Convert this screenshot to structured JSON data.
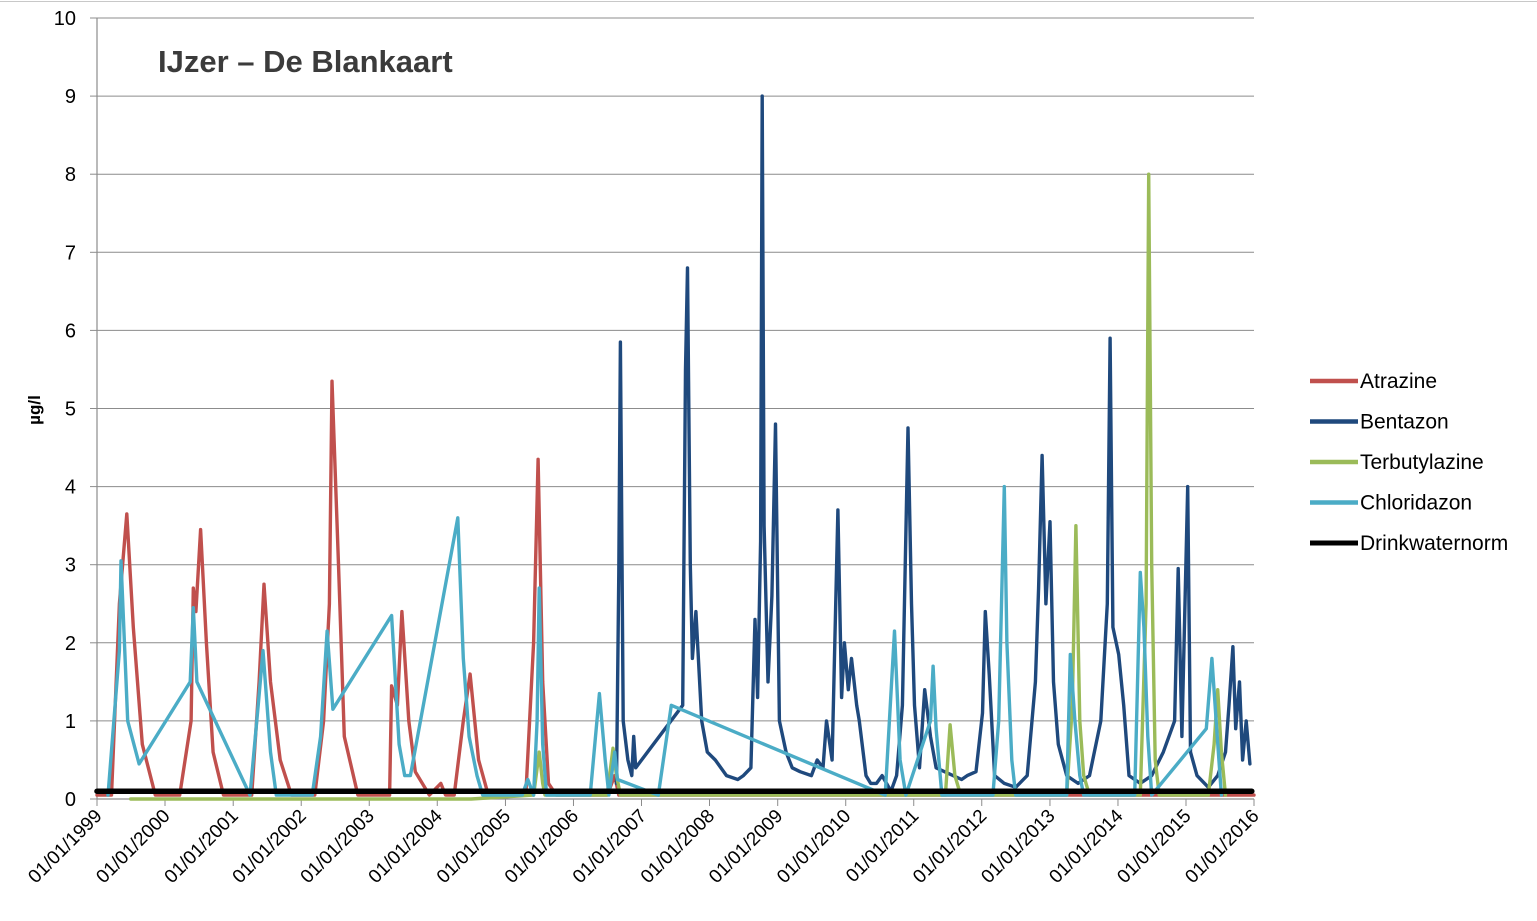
{
  "chart_data": {
    "type": "line",
    "title": "IJzer – De Blankaart",
    "xlabel": "",
    "ylabel": "µg/l",
    "ylim": [
      0,
      10
    ],
    "yticks": [
      "0",
      "1",
      "2",
      "3",
      "4",
      "5",
      "6",
      "7",
      "8",
      "9",
      "10"
    ],
    "xlim": [
      "1999-01-01",
      "2016-01-01"
    ],
    "xticks": [
      "01/01/1999",
      "01/01/2000",
      "01/01/2001",
      "01/01/2002",
      "01/01/2003",
      "01/01/2004",
      "01/01/2005",
      "01/01/2006",
      "01/01/2007",
      "01/01/2008",
      "01/01/2009",
      "01/01/2010",
      "01/01/2011",
      "01/01/2012",
      "01/01/2013",
      "01/01/2014",
      "01/01/2015",
      "01/01/2016"
    ],
    "grid": "horizontal",
    "legend_position": "right",
    "series": [
      {
        "name": "Atrazine",
        "color": "#c0504d",
        "points": [
          [
            "1999-01-01",
            0.05
          ],
          [
            "1999-03-20",
            0.05
          ],
          [
            "1999-05-01",
            2.5
          ],
          [
            "1999-06-10",
            3.65
          ],
          [
            "1999-07-15",
            2.2
          ],
          [
            "1999-09-01",
            0.7
          ],
          [
            "1999-11-10",
            0.05
          ],
          [
            "2000-03-20",
            0.05
          ],
          [
            "2000-05-20",
            1.0
          ],
          [
            "2000-06-01",
            2.7
          ],
          [
            "2000-06-15",
            2.4
          ],
          [
            "2000-07-10",
            3.45
          ],
          [
            "2000-08-10",
            2.0
          ],
          [
            "2000-09-15",
            0.6
          ],
          [
            "2000-11-10",
            0.05
          ],
          [
            "2001-04-10",
            0.05
          ],
          [
            "2001-05-20",
            1.5
          ],
          [
            "2001-06-15",
            2.75
          ],
          [
            "2001-07-20",
            1.5
          ],
          [
            "2001-09-10",
            0.5
          ],
          [
            "2001-11-10",
            0.05
          ],
          [
            "2002-03-15",
            0.05
          ],
          [
            "2002-05-01",
            1.0
          ],
          [
            "2002-06-01",
            2.5
          ],
          [
            "2002-06-15",
            5.35
          ],
          [
            "2002-07-20",
            3.0
          ],
          [
            "2002-08-20",
            0.8
          ],
          [
            "2002-11-01",
            0.05
          ],
          [
            "2003-04-20",
            0.05
          ],
          [
            "2003-05-01",
            1.45
          ],
          [
            "2003-06-01",
            1.2
          ],
          [
            "2003-06-25",
            2.4
          ],
          [
            "2003-08-01",
            1.0
          ],
          [
            "2003-09-05",
            0.35
          ],
          [
            "2003-11-20",
            0.05
          ],
          [
            "2004-01-20",
            0.2
          ],
          [
            "2004-02-15",
            0.05
          ],
          [
            "2004-04-01",
            0.05
          ],
          [
            "2004-05-20",
            1.0
          ],
          [
            "2004-06-25",
            1.6
          ],
          [
            "2004-08-10",
            0.5
          ],
          [
            "2004-10-01",
            0.05
          ],
          [
            "2005-04-20",
            0.05
          ],
          [
            "2005-06-01",
            2.0
          ],
          [
            "2005-06-25",
            4.35
          ],
          [
            "2005-07-20",
            1.5
          ],
          [
            "2005-08-20",
            0.2
          ],
          [
            "2005-10-01",
            0.05
          ],
          [
            "2006-07-01",
            0.05
          ],
          [
            "2006-08-10",
            0.3
          ],
          [
            "2006-09-01",
            0.05
          ],
          [
            "2006-10-10",
            0.05
          ],
          [
            "2011-02-01",
            0.05
          ],
          [
            "2012-01-01",
            0.05
          ],
          [
            "2016-01-01",
            0.05
          ]
        ]
      },
      {
        "name": "Bentazon",
        "color": "#1f497d",
        "points": [
          [
            "2006-08-20",
            0.2
          ],
          [
            "2006-09-01",
            2.9
          ],
          [
            "2006-09-10",
            5.85
          ],
          [
            "2006-09-25",
            1.0
          ],
          [
            "2006-10-20",
            0.5
          ],
          [
            "2006-11-10",
            0.3
          ],
          [
            "2006-11-20",
            0.8
          ],
          [
            "2006-12-01",
            0.4
          ],
          [
            "2007-08-10",
            1.2
          ],
          [
            "2007-08-25",
            5.5
          ],
          [
            "2007-09-05",
            6.8
          ],
          [
            "2007-09-20",
            3.0
          ],
          [
            "2007-10-01",
            1.8
          ],
          [
            "2007-10-20",
            2.4
          ],
          [
            "2007-11-20",
            1.0
          ],
          [
            "2007-12-20",
            0.6
          ],
          [
            "2008-02-01",
            0.5
          ],
          [
            "2008-04-01",
            0.3
          ],
          [
            "2008-06-01",
            0.25
          ],
          [
            "2008-07-01",
            0.3
          ],
          [
            "2008-08-10",
            0.4
          ],
          [
            "2008-09-01",
            2.3
          ],
          [
            "2008-09-15",
            1.3
          ],
          [
            "2008-10-01",
            3.3
          ],
          [
            "2008-10-10",
            9.0
          ],
          [
            "2008-10-20",
            3.5
          ],
          [
            "2008-11-10",
            1.5
          ],
          [
            "2008-12-01",
            2.6
          ],
          [
            "2008-12-20",
            4.8
          ],
          [
            "2009-01-10",
            1.0
          ],
          [
            "2009-02-15",
            0.6
          ],
          [
            "2009-03-20",
            0.4
          ],
          [
            "2009-05-01",
            0.35
          ],
          [
            "2009-07-01",
            0.3
          ],
          [
            "2009-08-01",
            0.5
          ],
          [
            "2009-09-01",
            0.4
          ],
          [
            "2009-09-20",
            1.0
          ],
          [
            "2009-10-20",
            0.5
          ],
          [
            "2009-11-20",
            3.7
          ],
          [
            "2009-12-10",
            1.3
          ],
          [
            "2009-12-25",
            2.0
          ],
          [
            "2010-01-15",
            1.4
          ],
          [
            "2010-02-01",
            1.8
          ],
          [
            "2010-03-01",
            1.2
          ],
          [
            "2010-03-15",
            1.0
          ],
          [
            "2010-04-20",
            0.3
          ],
          [
            "2010-05-15",
            0.2
          ],
          [
            "2010-06-15",
            0.2
          ],
          [
            "2010-07-15",
            0.3
          ],
          [
            "2010-09-01",
            0.1
          ],
          [
            "2010-10-01",
            0.3
          ],
          [
            "2010-11-01",
            1.2
          ],
          [
            "2010-12-01",
            4.75
          ],
          [
            "2010-12-20",
            2.5
          ],
          [
            "2011-01-05",
            1.2
          ],
          [
            "2011-02-01",
            0.4
          ],
          [
            "2011-03-01",
            1.4
          ],
          [
            "2011-04-01",
            0.8
          ],
          [
            "2011-05-01",
            0.4
          ],
          [
            "2011-09-15",
            0.25
          ],
          [
            "2011-10-15",
            0.3
          ],
          [
            "2011-12-01",
            0.35
          ],
          [
            "2012-01-05",
            1.1
          ],
          [
            "2012-01-20",
            2.4
          ],
          [
            "2012-02-10",
            1.6
          ],
          [
            "2012-03-10",
            0.3
          ],
          [
            "2012-05-01",
            0.2
          ],
          [
            "2012-07-01",
            0.15
          ],
          [
            "2012-09-01",
            0.3
          ],
          [
            "2012-10-15",
            1.5
          ],
          [
            "2012-11-01",
            2.7
          ],
          [
            "2012-11-20",
            4.4
          ],
          [
            "2012-12-10",
            2.5
          ],
          [
            "2013-01-01",
            3.55
          ],
          [
            "2013-01-20",
            1.5
          ],
          [
            "2013-02-15",
            0.7
          ],
          [
            "2013-04-01",
            0.3
          ],
          [
            "2013-06-01",
            0.2
          ],
          [
            "2013-08-01",
            0.3
          ],
          [
            "2013-10-01",
            1.0
          ],
          [
            "2013-11-05",
            2.5
          ],
          [
            "2013-11-20",
            5.9
          ],
          [
            "2013-12-05",
            2.2
          ],
          [
            "2014-01-05",
            1.85
          ],
          [
            "2014-02-01",
            1.2
          ],
          [
            "2014-03-01",
            0.3
          ],
          [
            "2014-05-01",
            0.2
          ],
          [
            "2014-07-01",
            0.3
          ],
          [
            "2014-09-01",
            0.6
          ],
          [
            "2014-11-01",
            1.0
          ],
          [
            "2014-11-20",
            2.95
          ],
          [
            "2014-12-10",
            0.8
          ],
          [
            "2015-01-10",
            4.0
          ],
          [
            "2015-01-25",
            0.6
          ],
          [
            "2015-03-01",
            0.3
          ],
          [
            "2015-05-01",
            0.15
          ],
          [
            "2015-06-20",
            0.3
          ],
          [
            "2015-08-01",
            0.6
          ],
          [
            "2015-08-20",
            1.2
          ],
          [
            "2015-09-10",
            1.95
          ],
          [
            "2015-09-25",
            0.9
          ],
          [
            "2015-10-15",
            1.5
          ],
          [
            "2015-11-01",
            0.5
          ],
          [
            "2015-11-20",
            1.0
          ],
          [
            "2015-12-10",
            0.45
          ]
        ]
      },
      {
        "name": "Terbutylazine",
        "color": "#9bbb59",
        "points": [
          [
            "1999-07-01",
            0.0
          ],
          [
            "2000-10-01",
            0.0
          ],
          [
            "2001-04-01",
            0.0
          ],
          [
            "2003-02-01",
            0.0
          ],
          [
            "2004-04-01",
            0.0
          ],
          [
            "2004-07-01",
            0.0
          ],
          [
            "2005-06-01",
            0.05
          ],
          [
            "2005-07-01",
            0.6
          ],
          [
            "2005-07-20",
            0.2
          ],
          [
            "2005-08-01",
            0.05
          ],
          [
            "2006-07-01",
            0.05
          ],
          [
            "2006-08-01",
            0.65
          ],
          [
            "2006-08-20",
            0.3
          ],
          [
            "2006-09-10",
            0.05
          ],
          [
            "2011-06-20",
            0.05
          ],
          [
            "2011-07-15",
            0.95
          ],
          [
            "2011-08-10",
            0.3
          ],
          [
            "2011-09-10",
            0.05
          ],
          [
            "2013-04-01",
            0.05
          ],
          [
            "2013-05-01",
            1.2
          ],
          [
            "2013-05-20",
            3.5
          ],
          [
            "2013-06-10",
            1.0
          ],
          [
            "2013-07-01",
            0.3
          ],
          [
            "2013-08-01",
            0.05
          ],
          [
            "2014-05-01",
            0.05
          ],
          [
            "2014-06-01",
            2.5
          ],
          [
            "2014-06-15",
            8.0
          ],
          [
            "2014-07-01",
            3.0
          ],
          [
            "2014-07-20",
            0.5
          ],
          [
            "2014-08-10",
            0.05
          ],
          [
            "2015-05-01",
            0.05
          ],
          [
            "2015-06-01",
            0.7
          ],
          [
            "2015-06-20",
            1.4
          ],
          [
            "2015-07-10",
            0.6
          ],
          [
            "2015-08-01",
            0.05
          ]
        ]
      },
      {
        "name": "Chloridazon",
        "color": "#4bacc6",
        "points": [
          [
            "1999-03-01",
            0.05
          ],
          [
            "1999-05-01",
            1.9
          ],
          [
            "1999-05-10",
            3.05
          ],
          [
            "1999-06-15",
            1.0
          ],
          [
            "1999-08-15",
            0.45
          ],
          [
            "2000-05-15",
            1.5
          ],
          [
            "2000-06-01",
            2.45
          ],
          [
            "2000-06-20",
            1.5
          ],
          [
            "2001-04-01",
            0.05
          ],
          [
            "2001-05-15",
            1.2
          ],
          [
            "2001-06-10",
            1.9
          ],
          [
            "2001-07-20",
            0.6
          ],
          [
            "2001-08-20",
            0.05
          ],
          [
            "2002-03-01",
            0.05
          ],
          [
            "2002-04-15",
            0.8
          ],
          [
            "2002-05-20",
            2.15
          ],
          [
            "2002-06-20",
            1.15
          ],
          [
            "2003-05-01",
            2.35
          ],
          [
            "2003-06-10",
            0.7
          ],
          [
            "2003-07-10",
            0.3
          ],
          [
            "2003-08-10",
            0.3
          ],
          [
            "2004-04-20",
            3.6
          ],
          [
            "2004-05-20",
            1.8
          ],
          [
            "2004-06-20",
            0.8
          ],
          [
            "2004-08-01",
            0.3
          ],
          [
            "2004-09-01",
            0.05
          ],
          [
            "2005-04-01",
            0.05
          ],
          [
            "2005-05-01",
            0.25
          ],
          [
            "2005-06-01",
            0.05
          ],
          [
            "2005-06-20",
            1.0
          ],
          [
            "2005-07-01",
            2.7
          ],
          [
            "2005-07-20",
            0.7
          ],
          [
            "2005-08-10",
            0.05
          ],
          [
            "2006-04-01",
            0.05
          ],
          [
            "2006-05-20",
            1.35
          ],
          [
            "2006-06-20",
            0.5
          ],
          [
            "2006-07-10",
            0.05
          ],
          [
            "2006-08-10",
            0.6
          ],
          [
            "2006-08-25",
            0.25
          ],
          [
            "2007-04-01",
            0.05
          ],
          [
            "2007-06-10",
            1.2
          ],
          [
            "2010-08-01",
            0.05
          ],
          [
            "2010-09-20",
            2.15
          ],
          [
            "2010-10-20",
            0.5
          ],
          [
            "2010-11-20",
            0.05
          ],
          [
            "2011-04-01",
            1.0
          ],
          [
            "2011-04-15",
            1.7
          ],
          [
            "2011-05-01",
            0.9
          ],
          [
            "2011-06-01",
            0.05
          ],
          [
            "2012-03-01",
            0.05
          ],
          [
            "2012-04-01",
            1.0
          ],
          [
            "2012-05-01",
            4.0
          ],
          [
            "2012-05-15",
            2.0
          ],
          [
            "2012-06-10",
            0.5
          ],
          [
            "2012-07-01",
            0.05
          ],
          [
            "2013-04-01",
            0.05
          ],
          [
            "2013-04-20",
            1.85
          ],
          [
            "2013-05-15",
            1.0
          ],
          [
            "2013-06-10",
            0.3
          ],
          [
            "2013-07-01",
            0.05
          ],
          [
            "2014-04-01",
            0.05
          ],
          [
            "2014-05-01",
            2.9
          ],
          [
            "2014-05-20",
            2.2
          ],
          [
            "2014-06-10",
            0.8
          ],
          [
            "2014-07-01",
            0.05
          ],
          [
            "2015-04-20",
            0.9
          ],
          [
            "2015-05-20",
            1.8
          ],
          [
            "2015-06-15",
            0.9
          ],
          [
            "2015-07-10",
            0.05
          ]
        ]
      },
      {
        "name": "Drinkwaternorm",
        "color": "#000000",
        "points": [
          [
            "1999-01-01",
            0.1
          ],
          [
            "2015-12-20",
            0.1
          ]
        ]
      }
    ]
  }
}
